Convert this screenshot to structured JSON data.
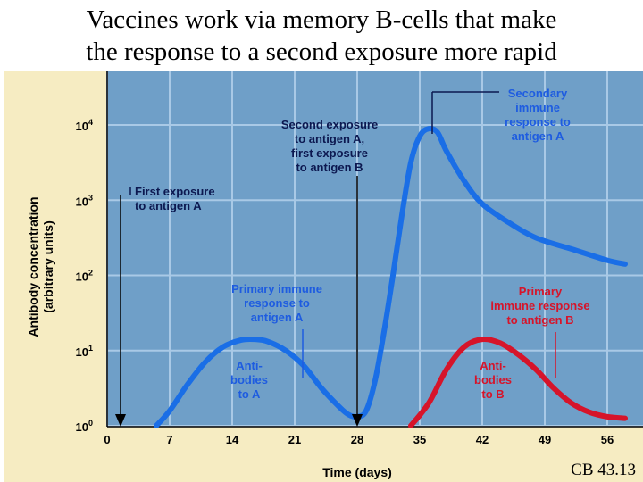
{
  "header": {
    "title_line1": "Vaccines work via memory B-cells that make",
    "title_line2": "the response to a second exposure more rapid"
  },
  "footer": {
    "caption": "CB 43.13"
  },
  "chart_data": {
    "type": "line",
    "title": "",
    "xlabel": "Time (days)",
    "ylabel_line1": "Antibody concentration",
    "ylabel_line2": "(arbitrary units)",
    "x_ticks": [
      0,
      7,
      14,
      21,
      28,
      35,
      42,
      49,
      56
    ],
    "y_tick_labels": [
      {
        "base": "10",
        "exp": "0",
        "value": 1
      },
      {
        "base": "10",
        "exp": "1",
        "value": 10
      },
      {
        "base": "10",
        "exp": "2",
        "value": 100
      },
      {
        "base": "10",
        "exp": "3",
        "value": 1000
      },
      {
        "base": "10",
        "exp": "4",
        "value": 10000
      }
    ],
    "xlim": [
      0,
      58
    ],
    "ylim_log10": [
      0,
      4.6
    ],
    "scale": "log",
    "grid": true,
    "colors": {
      "background": "#6f9fc8",
      "grid": "#a9c9e6",
      "series_a": "#1a6ee6",
      "series_b": "#d6142a",
      "label_navy": "#0c1850",
      "label_blue": "#1e5ce0",
      "label_red": "#d6142a"
    },
    "series": [
      {
        "name": "Antibodies to A",
        "color": "#1a6ee6",
        "points": [
          [
            5.5,
            0
          ],
          [
            7,
            0.2
          ],
          [
            9,
            0.55
          ],
          [
            11,
            0.85
          ],
          [
            13,
            1.05
          ],
          [
            15,
            1.14
          ],
          [
            16.5,
            1.15
          ],
          [
            18,
            1.12
          ],
          [
            20,
            1.0
          ],
          [
            22,
            0.8
          ],
          [
            24,
            0.5
          ],
          [
            26,
            0.25
          ],
          [
            27,
            0.15
          ],
          [
            28,
            0.12
          ],
          [
            29,
            0.2
          ],
          [
            30,
            0.6
          ],
          [
            31,
            1.25
          ],
          [
            32,
            2.0
          ],
          [
            33,
            2.8
          ],
          [
            34,
            3.5
          ],
          [
            35,
            3.85
          ],
          [
            36,
            3.95
          ],
          [
            37,
            3.9
          ],
          [
            38,
            3.65
          ],
          [
            40,
            3.25
          ],
          [
            42,
            2.95
          ],
          [
            45,
            2.7
          ],
          [
            48,
            2.5
          ],
          [
            52,
            2.35
          ],
          [
            56,
            2.2
          ],
          [
            58,
            2.15
          ]
        ]
      },
      {
        "name": "Antibodies to B",
        "color": "#d6142a",
        "points": [
          [
            34,
            0
          ],
          [
            36,
            0.3
          ],
          [
            38,
            0.75
          ],
          [
            40,
            1.05
          ],
          [
            42,
            1.15
          ],
          [
            44,
            1.1
          ],
          [
            46,
            0.95
          ],
          [
            48,
            0.75
          ],
          [
            50,
            0.5
          ],
          [
            52,
            0.3
          ],
          [
            54,
            0.18
          ],
          [
            56,
            0.12
          ],
          [
            58,
            0.1
          ]
        ]
      }
    ],
    "arrows": [
      {
        "x": 1.5
      },
      {
        "x": 28
      }
    ],
    "annotations": {
      "first_exposure": [
        "First exposure",
        "to antigen A"
      ],
      "second_exposure": [
        "Second exposure",
        "to antigen A,",
        "first exposure",
        "to antigen B"
      ],
      "secondary_response": [
        "Secondary",
        "immune",
        "response to",
        "antigen A"
      ],
      "primary_response_a": [
        "Primary immune",
        "response to",
        "antigen A"
      ],
      "primary_response_b": [
        "Primary",
        "immune response",
        "to antigen B"
      ],
      "antibodies_a": [
        "Anti-",
        "bodies",
        "to A"
      ],
      "antibodies_b": [
        "Anti-",
        "bodies",
        "to B"
      ]
    }
  }
}
